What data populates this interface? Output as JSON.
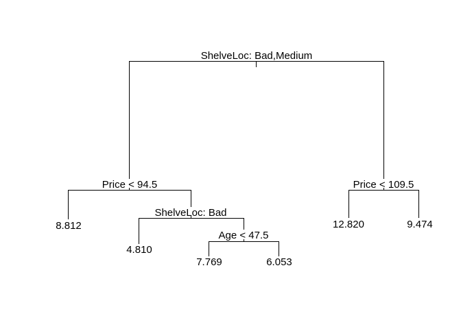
{
  "tree": {
    "root": {
      "split": "ShelveLoc: Bad,Medium",
      "left": {
        "split": "Price < 94.5",
        "left": {
          "leaf": "8.812"
        },
        "right": {
          "split": "ShelveLoc: Bad",
          "left": {
            "leaf": "4.810"
          },
          "right": {
            "split": "Age < 47.5",
            "left": {
              "leaf": "7.769"
            },
            "right": {
              "leaf": "6.053"
            }
          }
        }
      },
      "right": {
        "split": "Price < 109.5",
        "left": {
          "leaf": "12.820"
        },
        "right": {
          "leaf": "9.474"
        }
      }
    }
  },
  "colors": {
    "line": "#000000",
    "background": "#ffffff"
  }
}
